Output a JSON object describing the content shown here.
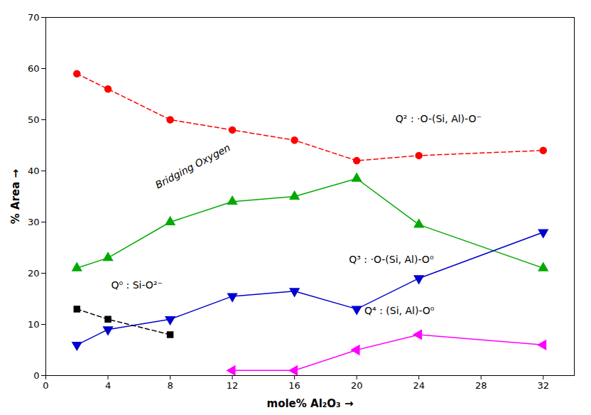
{
  "chart_data": {
    "type": "line",
    "x": [
      2,
      4,
      8,
      12,
      16,
      20,
      24,
      32
    ],
    "series": [
      {
        "color": "#ff0000",
        "marker": "circle",
        "line_style": "dashed",
        "values": [
          59,
          56,
          50,
          48,
          46,
          42,
          43,
          44
        ]
      },
      {
        "color": "#00aa00",
        "marker": "triangle-up",
        "line_style": "solid",
        "values": [
          21,
          23,
          30,
          34,
          35,
          38.5,
          29.5,
          21
        ]
      },
      {
        "color": "#0000cc",
        "marker": "triangle-down",
        "line_style": "solid",
        "values": [
          6,
          9,
          11,
          15.5,
          16.5,
          13,
          19,
          28
        ]
      },
      {
        "color": "#000000",
        "marker": "square",
        "line_style": "dashed",
        "values": [
          13,
          11,
          8,
          null,
          null,
          null,
          null,
          null
        ]
      },
      {
        "color": "#ff00ff",
        "marker": "triangle-left",
        "line_style": "solid",
        "values": [
          null,
          null,
          null,
          1,
          1,
          5,
          8,
          6
        ]
      }
    ],
    "xlabel": "mole% Al₂O₃",
    "ylabel": "% Area",
    "xlim": [
      0,
      34
    ],
    "ylim": [
      0,
      70
    ],
    "xticks": [
      0,
      4,
      8,
      12,
      16,
      20,
      24,
      28,
      32
    ],
    "yticks": [
      0,
      10,
      20,
      30,
      40,
      50,
      60,
      70
    ],
    "grid": false,
    "annotations": [
      {
        "text": "Bridging Oxygen",
        "x": 7.2,
        "y": 36.5
      },
      {
        "text": "Q² : ·O-(Si, Al)-O⁻",
        "x": 22.5,
        "y": 49.5
      },
      {
        "text": "Q³ : ·O-(Si, Al)-O⁰",
        "x": 19.5,
        "y": 22
      },
      {
        "text": "Q⁰ : Si-O²⁻",
        "x": 4.2,
        "y": 17
      },
      {
        "text": "Q⁴ : (Si, Al)-O⁰",
        "x": 20.5,
        "y": 12
      }
    ]
  }
}
